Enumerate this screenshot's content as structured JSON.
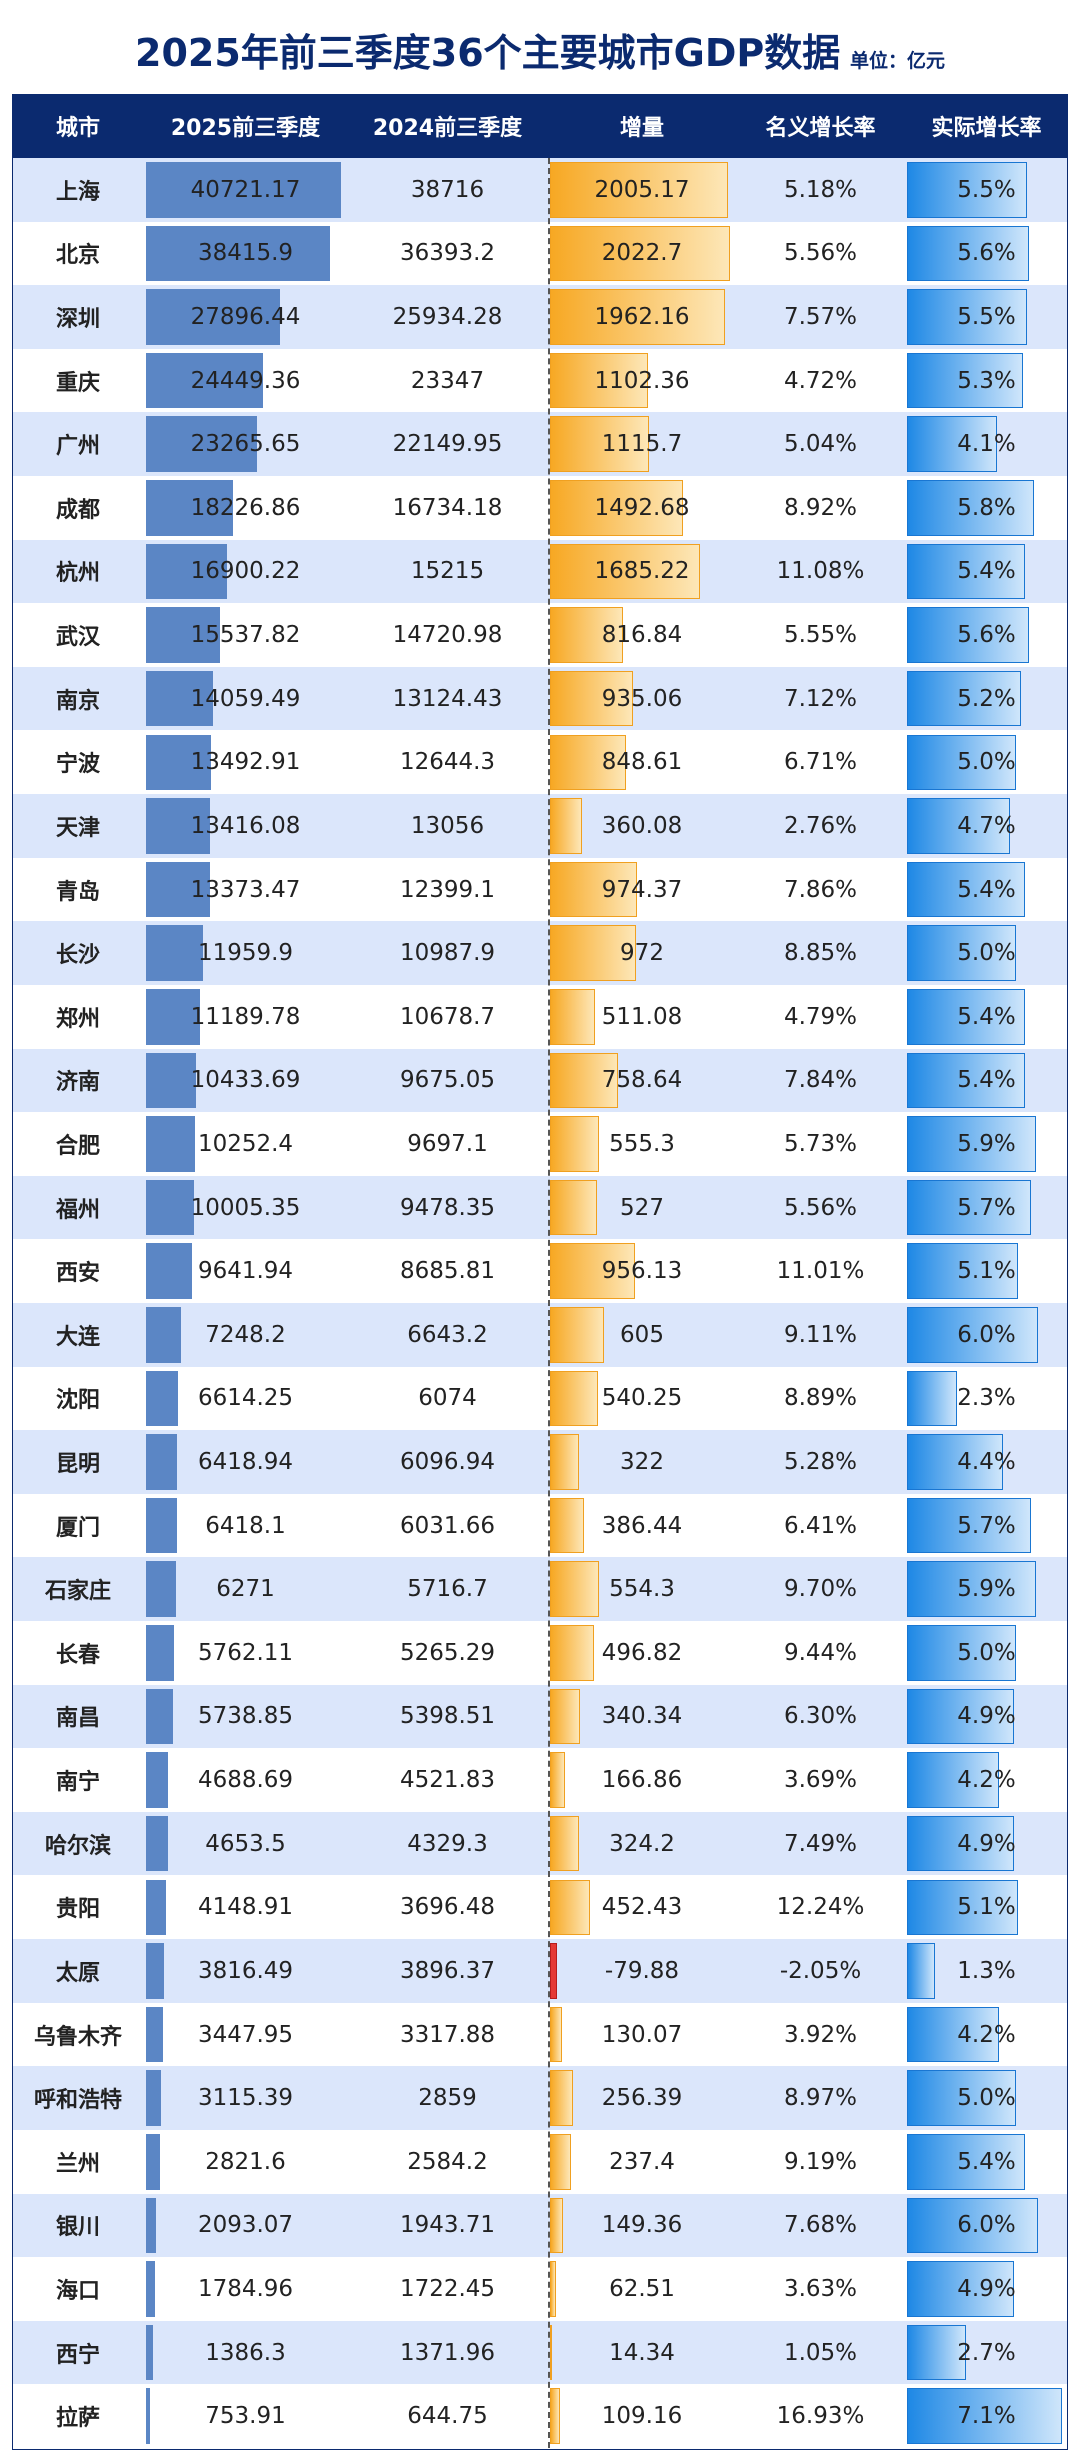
{
  "title": "2025年前三季度36个主要城市GDP数据",
  "unit": "单位：亿元",
  "table": {
    "columns": [
      "城市",
      "2025前三季度",
      "2024前三季度",
      "增量",
      "名义增长率",
      "实际增长率"
    ],
    "rows": [
      [
        "上海",
        40721.17,
        38716,
        2005.17,
        "5.18%",
        "5.5%"
      ],
      [
        "北京",
        38415.9,
        36393.2,
        2022.7,
        "5.56%",
        "5.6%"
      ],
      [
        "深圳",
        27896.44,
        25934.28,
        1962.16,
        "7.57%",
        "5.5%"
      ],
      [
        "重庆",
        24449.36,
        23347,
        1102.36,
        "4.72%",
        "5.3%"
      ],
      [
        "广州",
        23265.65,
        22149.95,
        1115.7,
        "5.04%",
        "4.1%"
      ],
      [
        "成都",
        18226.86,
        16734.18,
        1492.68,
        "8.92%",
        "5.8%"
      ],
      [
        "杭州",
        16900.22,
        15215,
        1685.22,
        "11.08%",
        "5.4%"
      ],
      [
        "武汉",
        15537.82,
        14720.98,
        816.84,
        "5.55%",
        "5.6%"
      ],
      [
        "南京",
        14059.49,
        13124.43,
        935.06,
        "7.12%",
        "5.2%"
      ],
      [
        "宁波",
        13492.91,
        12644.3,
        848.61,
        "6.71%",
        "5.0%"
      ],
      [
        "天津",
        13416.08,
        13056,
        360.08,
        "2.76%",
        "4.7%"
      ],
      [
        "青岛",
        13373.47,
        12399.1,
        974.37,
        "7.86%",
        "5.4%"
      ],
      [
        "长沙",
        11959.9,
        10987.9,
        972,
        "8.85%",
        "5.0%"
      ],
      [
        "郑州",
        11189.78,
        10678.7,
        511.08,
        "4.79%",
        "5.4%"
      ],
      [
        "济南",
        10433.69,
        9675.05,
        758.64,
        "7.84%",
        "5.4%"
      ],
      [
        "合肥",
        10252.4,
        9697.1,
        555.3,
        "5.73%",
        "5.9%"
      ],
      [
        "福州",
        10005.35,
        9478.35,
        527,
        "5.56%",
        "5.7%"
      ],
      [
        "西安",
        9641.94,
        8685.81,
        956.13,
        "11.01%",
        "5.1%"
      ],
      [
        "大连",
        7248.2,
        6643.2,
        605,
        "9.11%",
        "6.0%"
      ],
      [
        "沈阳",
        6614.25,
        6074,
        540.25,
        "8.89%",
        "2.3%"
      ],
      [
        "昆明",
        6418.94,
        6096.94,
        322,
        "5.28%",
        "4.4%"
      ],
      [
        "厦门",
        6418.1,
        6031.66,
        386.44,
        "6.41%",
        "5.7%"
      ],
      [
        "石家庄",
        6271,
        5716.7,
        554.3,
        "9.70%",
        "5.9%"
      ],
      [
        "长春",
        5762.11,
        5265.29,
        496.82,
        "9.44%",
        "5.0%"
      ],
      [
        "南昌",
        5738.85,
        5398.51,
        340.34,
        "6.30%",
        "4.9%"
      ],
      [
        "南宁",
        4688.69,
        4521.83,
        166.86,
        "3.69%",
        "4.2%"
      ],
      [
        "哈尔滨",
        4653.5,
        4329.3,
        324.2,
        "7.49%",
        "4.9%"
      ],
      [
        "贵阳",
        4148.91,
        3696.48,
        452.43,
        "12.24%",
        "5.1%"
      ],
      [
        "太原",
        3816.49,
        3896.37,
        -79.88,
        "-2.05%",
        "1.3%"
      ],
      [
        "乌鲁木齐",
        3447.95,
        3317.88,
        130.07,
        "3.92%",
        "4.2%"
      ],
      [
        "呼和浩特",
        3115.39,
        2859,
        256.39,
        "8.97%",
        "5.0%"
      ],
      [
        "兰州",
        2821.6,
        2584.2,
        237.4,
        "9.19%",
        "5.4%"
      ],
      [
        "银川",
        2093.07,
        1943.71,
        149.36,
        "7.68%",
        "6.0%"
      ],
      [
        "海口",
        1784.96,
        1722.45,
        62.51,
        "3.63%",
        "4.9%"
      ],
      [
        "西宁",
        1386.3,
        1371.96,
        14.34,
        "1.05%",
        "2.7%"
      ],
      [
        "拉萨",
        753.91,
        644.75,
        109.16,
        "16.93%",
        "7.1%"
      ]
    ]
  }
}
